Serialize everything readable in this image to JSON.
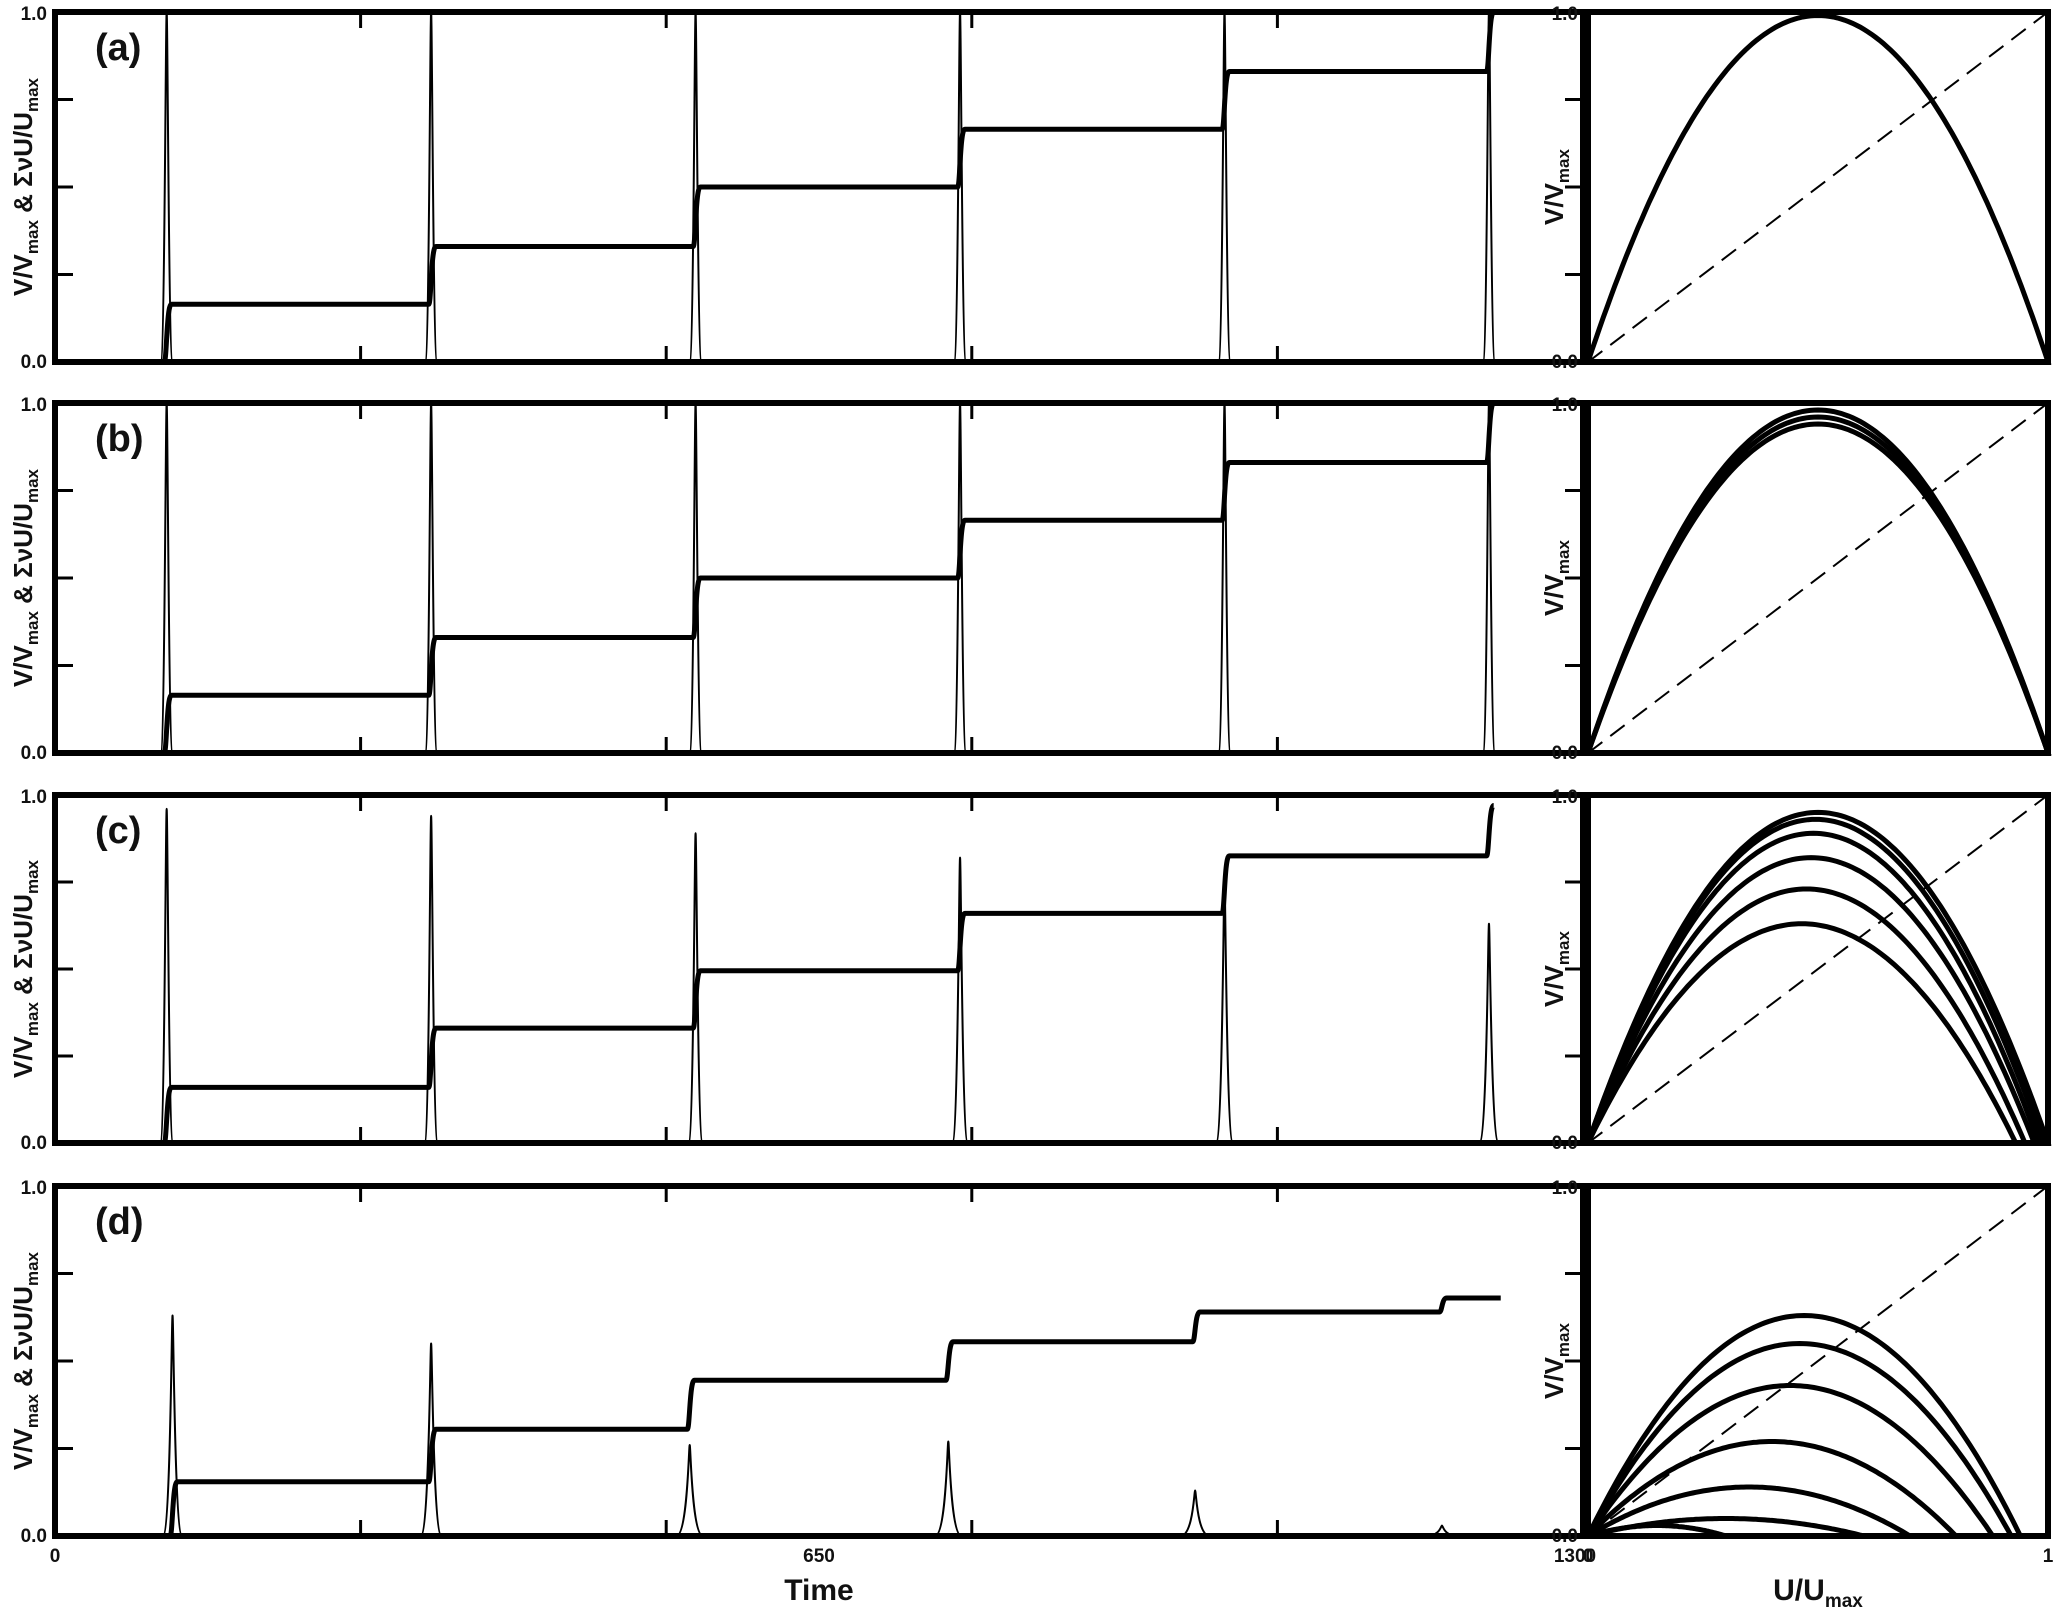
{
  "figure": {
    "panel_tags": [
      "(a)",
      "(b)",
      "(c)",
      "(d)"
    ],
    "time_axis": {
      "title": "Time",
      "ticks": [
        "0",
        "650",
        "1300"
      ]
    },
    "phase_axis": {
      "xtitle": "U/U",
      "xtitle_sub": "max",
      "xticks": [
        "0",
        "1"
      ]
    },
    "y_ticks": [
      "0.0",
      "1.0"
    ],
    "left_ylabel": {
      "main": "V/V",
      "sub1": "max",
      "mid": " & ΣνU/U",
      "sub2": "max"
    },
    "right_ylabel": {
      "main": "V/V",
      "sub": "max"
    }
  },
  "chart_data": [
    {
      "type": "line",
      "panel": "(a)",
      "x_range": [
        0,
        1300
      ],
      "ylim": [
        0,
        1
      ],
      "series": [
        {
          "kind": "staircase",
          "levels": [
            0,
            0.165,
            0.33,
            0.5,
            0.665,
            0.83,
            1.0
          ],
          "jump_times": [
            95,
            320,
            545,
            770,
            995,
            1220
          ]
        },
        {
          "kind": "spikes",
          "times": [
            95,
            320,
            545,
            770,
            995,
            1220
          ],
          "heights": [
            1.0,
            1.0,
            1.0,
            1.0,
            1.0,
            1.0
          ]
        }
      ]
    },
    {
      "type": "line",
      "panel": "(b)",
      "x_range": [
        0,
        1300
      ],
      "ylim": [
        0,
        1
      ],
      "series": [
        {
          "kind": "staircase",
          "levels": [
            0,
            0.165,
            0.33,
            0.5,
            0.665,
            0.83,
            1.0
          ],
          "jump_times": [
            95,
            320,
            545,
            770,
            995,
            1220
          ]
        },
        {
          "kind": "spikes",
          "times": [
            95,
            320,
            545,
            770,
            995,
            1220
          ],
          "heights": [
            1.0,
            1.0,
            1.0,
            1.0,
            1.0,
            1.0
          ]
        }
      ]
    },
    {
      "type": "line",
      "panel": "(c)",
      "x_range": [
        0,
        1300
      ],
      "ylim": [
        0,
        1
      ],
      "series": [
        {
          "kind": "staircase",
          "levels": [
            0,
            0.16,
            0.33,
            0.495,
            0.66,
            0.825,
            0.97
          ],
          "jump_times": [
            95,
            320,
            545,
            770,
            995,
            1220
          ]
        },
        {
          "kind": "spikes",
          "times": [
            95,
            320,
            545,
            770,
            995,
            1220
          ],
          "heights": [
            0.96,
            0.94,
            0.89,
            0.82,
            0.75,
            0.63
          ]
        }
      ]
    },
    {
      "type": "line",
      "panel": "(d)",
      "x_range": [
        0,
        1300
      ],
      "ylim": [
        0,
        1
      ],
      "series": [
        {
          "kind": "staircase",
          "levels": [
            0,
            0.155,
            0.305,
            0.445,
            0.555,
            0.64,
            0.68
          ],
          "jump_times": [
            100,
            320,
            540,
            760,
            970,
            1180
          ],
          "end_time": 1230
        },
        {
          "kind": "spikes",
          "times": [
            100,
            320,
            540,
            760,
            970,
            1180
          ],
          "heights": [
            0.63,
            0.55,
            0.26,
            0.27,
            0.13,
            0.03
          ]
        }
      ]
    },
    {
      "type": "line",
      "panel": "(a) phase",
      "xlim": [
        0,
        1
      ],
      "ylim": [
        0,
        1
      ],
      "reference_line": "y = x",
      "loops": [
        {
          "umax": 1.0,
          "vmax": 0.99
        }
      ]
    },
    {
      "type": "line",
      "panel": "(b) phase",
      "xlim": [
        0,
        1
      ],
      "ylim": [
        0,
        1
      ],
      "reference_line": "y = x",
      "loops": [
        {
          "umax": 1.0,
          "vmax": 0.98
        },
        {
          "umax": 1.0,
          "vmax": 0.96
        },
        {
          "umax": 1.0,
          "vmax": 0.94
        }
      ]
    },
    {
      "type": "line",
      "panel": "(c) phase",
      "xlim": [
        0,
        1
      ],
      "ylim": [
        0,
        1
      ],
      "reference_line": "y = x",
      "loops": [
        {
          "umax": 1.0,
          "vmax": 0.95
        },
        {
          "umax": 0.99,
          "vmax": 0.93
        },
        {
          "umax": 0.98,
          "vmax": 0.89
        },
        {
          "umax": 0.97,
          "vmax": 0.82
        },
        {
          "umax": 0.95,
          "vmax": 0.73
        },
        {
          "umax": 0.93,
          "vmax": 0.63
        }
      ]
    },
    {
      "type": "line",
      "panel": "(d) phase",
      "xlim": [
        0,
        1
      ],
      "ylim": [
        0,
        1
      ],
      "reference_line": "y = x",
      "loops": [
        {
          "umax": 0.94,
          "vmax": 0.63
        },
        {
          "umax": 0.92,
          "vmax": 0.55
        },
        {
          "umax": 0.88,
          "vmax": 0.43
        },
        {
          "umax": 0.8,
          "vmax": 0.27
        },
        {
          "umax": 0.7,
          "vmax": 0.14
        },
        {
          "umax": 0.6,
          "vmax": 0.05
        },
        {
          "umax": 0.3,
          "vmax": 0.03
        }
      ]
    }
  ]
}
